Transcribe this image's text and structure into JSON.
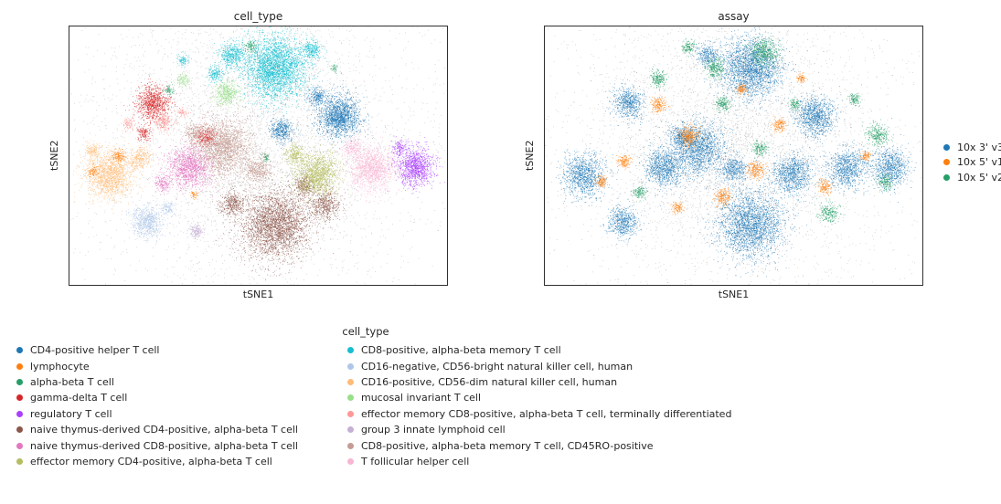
{
  "figure": {
    "panels": [
      {
        "title": "cell_type",
        "xlabel": "tSNE1",
        "ylabel": "tSNE2"
      },
      {
        "title": "assay",
        "xlabel": "tSNE1",
        "ylabel": "tSNE2"
      }
    ],
    "assay_legend": {
      "items": [
        {
          "label": "10x 3' v3",
          "color": "#1f77b4"
        },
        {
          "label": "10x 5' v1",
          "color": "#ff7f0e"
        },
        {
          "label": "10x 5' v2",
          "color": "#279e68"
        }
      ]
    },
    "cell_type_legend": {
      "title": "cell_type",
      "column1": [
        {
          "label": "CD4-positive helper T cell",
          "color": "#1f77b4"
        },
        {
          "label": "lymphocyte",
          "color": "#ff7f0e"
        },
        {
          "label": "alpha-beta T cell",
          "color": "#279e68"
        },
        {
          "label": "gamma-delta T cell",
          "color": "#d62728"
        },
        {
          "label": "regulatory T cell",
          "color": "#aa40fc"
        },
        {
          "label": "naive thymus-derived CD4-positive, alpha-beta T cell",
          "color": "#8c564b"
        },
        {
          "label": "naive thymus-derived CD8-positive, alpha-beta T cell",
          "color": "#e377c2"
        },
        {
          "label": "effector memory CD4-positive, alpha-beta T cell",
          "color": "#b5bd61"
        }
      ],
      "column2": [
        {
          "label": "CD8-positive, alpha-beta memory T cell",
          "color": "#17becf"
        },
        {
          "label": "CD16-negative, CD56-bright natural killer cell, human",
          "color": "#aec7e8"
        },
        {
          "label": "CD16-positive, CD56-dim natural killer cell, human",
          "color": "#ffbb78"
        },
        {
          "label": "mucosal invariant T cell",
          "color": "#98df8a"
        },
        {
          "label": "effector memory CD8-positive, alpha-beta T cell, terminally differentiated",
          "color": "#ff9896"
        },
        {
          "label": "group 3 innate lymphoid cell",
          "color": "#c5b0d5"
        },
        {
          "label": "CD8-positive, alpha-beta memory T cell, CD45RO-positive",
          "color": "#c49c94"
        },
        {
          "label": "T follicular helper cell",
          "color": "#f7b6d2"
        }
      ]
    }
  },
  "chart_data": [
    {
      "type": "scatter",
      "title": "cell_type",
      "xlabel": "tSNE1",
      "ylabel": "tSNE2",
      "axes": {
        "ticks": "none",
        "note": "t-SNE embedding; no numeric tick labels shown"
      },
      "cluster_format": [
        "x_frac_of_plot_width",
        "y_frac_of_plot_height_from_top",
        "cluster_radius_frac",
        "approx_point_count"
      ],
      "series": [
        {
          "name": "background-speckle",
          "color": "#4a4a4a",
          "alpha": 0.3,
          "clusters": [
            [
              0.5,
              0.44,
              0.52,
              2600
            ],
            [
              0.48,
              0.45,
              0.3,
              2200
            ],
            [
              0.5,
              0.45,
              0.8,
              800
            ]
          ]
        },
        {
          "name": "CD8-positive, alpha-beta memory T cell",
          "color": "#17becf",
          "alpha": 0.8,
          "clusters": [
            [
              0.545,
              0.16,
              0.085,
              3200
            ],
            [
              0.43,
              0.11,
              0.035,
              500
            ],
            [
              0.64,
              0.09,
              0.026,
              280
            ],
            [
              0.385,
              0.185,
              0.022,
              180
            ],
            [
              0.3,
              0.13,
              0.015,
              90
            ]
          ]
        },
        {
          "name": "CD4-positive helper T cell",
          "color": "#1f77b4",
          "alpha": 0.8,
          "clusters": [
            [
              0.715,
              0.345,
              0.055,
              1600
            ],
            [
              0.56,
              0.4,
              0.03,
              420
            ],
            [
              0.655,
              0.27,
              0.024,
              260
            ]
          ]
        },
        {
          "name": "gamma-delta T cell",
          "color": "#d62728",
          "alpha": 0.8,
          "clusters": [
            [
              0.22,
              0.295,
              0.045,
              950
            ],
            [
              0.36,
              0.425,
              0.03,
              320
            ],
            [
              0.195,
              0.41,
              0.02,
              150
            ]
          ]
        },
        {
          "name": "effector memory CD8-positive, alpha-beta T cell, terminally differentiated",
          "color": "#ff9896",
          "alpha": 0.8,
          "clusters": [
            [
              0.25,
              0.37,
              0.024,
              230
            ],
            [
              0.155,
              0.375,
              0.015,
              90
            ],
            [
              0.3,
              0.33,
              0.013,
              70
            ]
          ]
        },
        {
          "name": "mucosal invariant T cell",
          "color": "#98df8a",
          "alpha": 0.8,
          "clusters": [
            [
              0.415,
              0.255,
              0.032,
              480
            ],
            [
              0.3,
              0.205,
              0.018,
              130
            ]
          ]
        },
        {
          "name": "alpha-beta T cell",
          "color": "#279e68",
          "alpha": 0.8,
          "clusters": [
            [
              0.48,
              0.075,
              0.016,
              110
            ],
            [
              0.265,
              0.245,
              0.013,
              70
            ],
            [
              0.52,
              0.505,
              0.011,
              50
            ],
            [
              0.7,
              0.16,
              0.01,
              40
            ]
          ]
        },
        {
          "name": "CD16-positive, CD56-dim natural killer cell, human",
          "color": "#ffbb78",
          "alpha": 0.8,
          "clusters": [
            [
              0.105,
              0.575,
              0.062,
              1600
            ],
            [
              0.185,
              0.51,
              0.03,
              330
            ],
            [
              0.06,
              0.48,
              0.02,
              150
            ]
          ]
        },
        {
          "name": "lymphocyte",
          "color": "#ff7f0e",
          "alpha": 0.8,
          "clusters": [
            [
              0.13,
              0.5,
              0.018,
              140
            ],
            [
              0.06,
              0.56,
              0.014,
              90
            ],
            [
              0.33,
              0.65,
              0.01,
              50
            ]
          ]
        },
        {
          "name": "CD8-positive, alpha-beta memory T cell, CD45RO-positive",
          "color": "#c49c94",
          "alpha": 0.8,
          "clusters": [
            [
              0.405,
              0.47,
              0.075,
              2300
            ],
            [
              0.5,
              0.555,
              0.038,
              500
            ],
            [
              0.33,
              0.41,
              0.025,
              220
            ]
          ]
        },
        {
          "name": "naive thymus-derived CD8-positive, alpha-beta T cell",
          "color": "#e377c2",
          "alpha": 0.8,
          "clusters": [
            [
              0.315,
              0.545,
              0.055,
              1300
            ],
            [
              0.245,
              0.605,
              0.022,
              180
            ]
          ]
        },
        {
          "name": "group 3 innate lymphoid cell",
          "color": "#c5b0d5",
          "alpha": 0.8,
          "clusters": [
            [
              0.335,
              0.79,
              0.017,
              170
            ]
          ]
        },
        {
          "name": "CD16-negative, CD56-bright natural killer cell, human",
          "color": "#aec7e8",
          "alpha": 0.8,
          "clusters": [
            [
              0.205,
              0.755,
              0.042,
              750
            ],
            [
              0.26,
              0.7,
              0.018,
              120
            ]
          ]
        },
        {
          "name": "naive thymus-derived CD4-positive, alpha-beta T cell",
          "color": "#8c564b",
          "alpha": 0.8,
          "clusters": [
            [
              0.545,
              0.765,
              0.09,
              3000
            ],
            [
              0.675,
              0.69,
              0.04,
              550
            ],
            [
              0.43,
              0.685,
              0.032,
              380
            ],
            [
              0.62,
              0.62,
              0.03,
              300
            ]
          ]
        },
        {
          "name": "effector memory CD4-positive, alpha-beta T cell",
          "color": "#b5bd61",
          "alpha": 0.8,
          "clusters": [
            [
              0.655,
              0.57,
              0.058,
              1500
            ],
            [
              0.595,
              0.495,
              0.026,
              260
            ]
          ]
        },
        {
          "name": "T follicular helper cell",
          "color": "#f7b6d2",
          "alpha": 0.8,
          "clusters": [
            [
              0.8,
              0.548,
              0.058,
              1450
            ],
            [
              0.748,
              0.468,
              0.026,
              240
            ]
          ]
        },
        {
          "name": "regulatory T cell",
          "color": "#aa40fc",
          "alpha": 0.8,
          "clusters": [
            [
              0.915,
              0.545,
              0.05,
              1200
            ],
            [
              0.872,
              0.468,
              0.02,
              150
            ]
          ]
        }
      ]
    },
    {
      "type": "scatter",
      "title": "assay",
      "xlabel": "tSNE1",
      "ylabel": "tSNE2",
      "axes": {
        "ticks": "none",
        "note": "same embedding colored by assay; mostly 10x 3' v3 with interspersed 5' patches"
      },
      "cluster_format": [
        "x_frac_of_plot_width",
        "y_frac_of_plot_height_from_top",
        "cluster_radius_frac",
        "approx_point_count"
      ],
      "series": [
        {
          "name": "background-speckle",
          "color": "#4a4a4a",
          "alpha": 0.3,
          "clusters": [
            [
              0.5,
              0.44,
              0.52,
              2600
            ],
            [
              0.48,
              0.45,
              0.3,
              2200
            ],
            [
              0.5,
              0.45,
              0.8,
              800
            ]
          ]
        },
        {
          "name": "10x 3' v3",
          "color": "#1f77b4",
          "alpha": 0.75,
          "clusters": [
            [
              0.545,
              0.16,
              0.08,
              2400
            ],
            [
              0.715,
              0.345,
              0.05,
              1100
            ],
            [
              0.915,
              0.545,
              0.048,
              850
            ],
            [
              0.545,
              0.765,
              0.088,
              2600
            ],
            [
              0.405,
              0.47,
              0.07,
              1700
            ],
            [
              0.315,
              0.545,
              0.052,
              1000
            ],
            [
              0.655,
              0.57,
              0.052,
              1000
            ],
            [
              0.105,
              0.575,
              0.058,
              1100
            ],
            [
              0.205,
              0.755,
              0.04,
              600
            ],
            [
              0.8,
              0.548,
              0.052,
              950
            ],
            [
              0.22,
              0.295,
              0.042,
              650
            ],
            [
              0.43,
              0.11,
              0.03,
              320
            ],
            [
              0.5,
              0.555,
              0.035,
              450
            ],
            [
              0.36,
              0.425,
              0.028,
              300
            ]
          ]
        },
        {
          "name": "10x 5' v1",
          "color": "#ff7f0e",
          "alpha": 0.8,
          "clusters": [
            [
              0.38,
              0.42,
              0.026,
              300
            ],
            [
              0.56,
              0.55,
              0.022,
              230
            ],
            [
              0.3,
              0.3,
              0.02,
              190
            ],
            [
              0.62,
              0.38,
              0.018,
              150
            ],
            [
              0.47,
              0.66,
              0.022,
              210
            ],
            [
              0.21,
              0.52,
              0.018,
              150
            ],
            [
              0.74,
              0.62,
              0.018,
              150
            ],
            [
              0.52,
              0.24,
              0.015,
              110
            ],
            [
              0.35,
              0.7,
              0.015,
              110
            ],
            [
              0.68,
              0.2,
              0.012,
              80
            ],
            [
              0.15,
              0.6,
              0.015,
              110
            ],
            [
              0.85,
              0.5,
              0.013,
              90
            ]
          ]
        },
        {
          "name": "10x 5' v2",
          "color": "#279e68",
          "alpha": 0.8,
          "clusters": [
            [
              0.58,
              0.1,
              0.038,
              520
            ],
            [
              0.45,
              0.16,
              0.026,
              270
            ],
            [
              0.88,
              0.42,
              0.03,
              310
            ],
            [
              0.3,
              0.2,
              0.022,
              210
            ],
            [
              0.47,
              0.3,
              0.02,
              180
            ],
            [
              0.75,
              0.72,
              0.026,
              240
            ],
            [
              0.57,
              0.47,
              0.02,
              170
            ],
            [
              0.25,
              0.64,
              0.018,
              140
            ],
            [
              0.9,
              0.6,
              0.02,
              170
            ],
            [
              0.66,
              0.3,
              0.015,
              110
            ],
            [
              0.38,
              0.08,
              0.018,
              140
            ],
            [
              0.82,
              0.28,
              0.016,
              120
            ]
          ]
        }
      ]
    }
  ]
}
